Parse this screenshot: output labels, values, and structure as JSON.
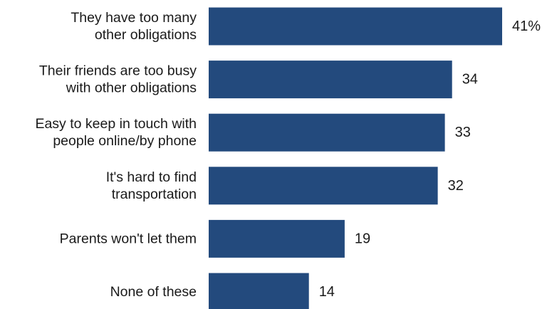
{
  "chart_data": {
    "type": "bar",
    "orientation": "horizontal",
    "title": "",
    "xlabel": "",
    "ylabel": "",
    "categories": [
      [
        "They have too many",
        "other obligations"
      ],
      [
        "Their friends are too busy",
        "with other obligations"
      ],
      [
        "Easy to keep in touch with",
        "people online/by phone"
      ],
      [
        "It's hard to find",
        "transportation"
      ],
      [
        "Parents won't let them"
      ],
      [
        "None of these"
      ]
    ],
    "values": [
      41,
      34,
      33,
      32,
      19,
      14
    ],
    "value_labels": [
      "41%",
      "34",
      "33",
      "32",
      "19",
      "14"
    ],
    "xlim": [
      0,
      41
    ],
    "grid": false,
    "legend": "none",
    "colors": {
      "bar": "#234a7d",
      "text": "#1a1a1a"
    }
  }
}
